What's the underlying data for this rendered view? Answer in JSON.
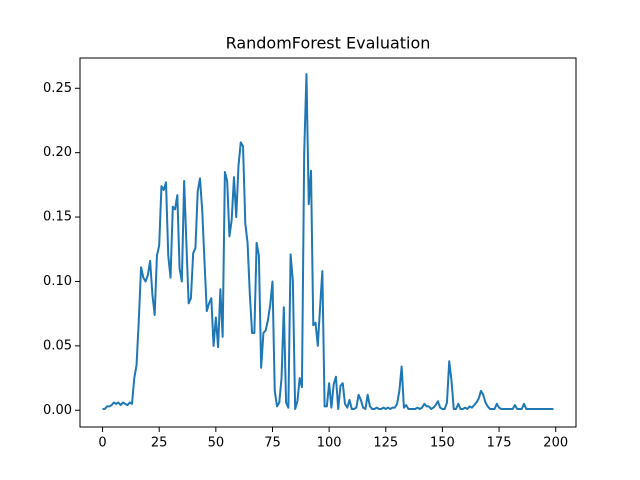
{
  "chart_data": {
    "type": "line",
    "title": "RandomForest Evaluation",
    "color": "#1f77b4",
    "x": [
      0,
      1,
      2,
      3,
      4,
      5,
      6,
      7,
      8,
      9,
      10,
      11,
      12,
      13,
      14,
      15,
      16,
      17,
      18,
      19,
      20,
      21,
      22,
      23,
      24,
      25,
      26,
      27,
      28,
      29,
      30,
      31,
      32,
      33,
      34,
      35,
      36,
      37,
      38,
      39,
      40,
      41,
      42,
      43,
      44,
      45,
      46,
      47,
      48,
      49,
      50,
      51,
      52,
      53,
      54,
      55,
      56,
      57,
      58,
      59,
      60,
      61,
      62,
      63,
      64,
      65,
      66,
      67,
      68,
      69,
      70,
      71,
      72,
      73,
      74,
      75,
      76,
      77,
      78,
      79,
      80,
      81,
      82,
      83,
      84,
      85,
      86,
      87,
      88,
      89,
      90,
      91,
      92,
      93,
      94,
      95,
      96,
      97,
      98,
      99,
      100,
      101,
      102,
      103,
      104,
      105,
      106,
      107,
      108,
      109,
      110,
      111,
      112,
      113,
      114,
      115,
      116,
      117,
      118,
      119,
      120,
      121,
      122,
      123,
      124,
      125,
      126,
      127,
      128,
      129,
      130,
      131,
      132,
      133,
      134,
      135,
      136,
      137,
      138,
      139,
      140,
      141,
      142,
      143,
      144,
      145,
      146,
      147,
      148,
      149,
      150,
      151,
      152,
      153,
      154,
      155,
      156,
      157,
      158,
      159,
      160,
      161,
      162,
      163,
      164,
      165,
      166,
      167,
      168,
      169,
      170,
      171,
      172,
      173,
      174,
      175,
      176,
      177,
      178,
      179,
      180,
      181,
      182,
      183,
      184,
      185,
      186,
      187,
      188,
      189,
      190,
      191,
      192,
      193,
      194,
      195,
      196,
      197,
      198,
      199
    ],
    "values": [
      0.001,
      0.001,
      0.003,
      0.003,
      0.004,
      0.006,
      0.005,
      0.006,
      0.004,
      0.006,
      0.005,
      0.004,
      0.006,
      0.005,
      0.025,
      0.035,
      0.07,
      0.111,
      0.103,
      0.1,
      0.105,
      0.116,
      0.09,
      0.074,
      0.12,
      0.128,
      0.174,
      0.171,
      0.177,
      0.12,
      0.103,
      0.158,
      0.156,
      0.167,
      0.11,
      0.1,
      0.178,
      0.13,
      0.083,
      0.087,
      0.122,
      0.126,
      0.17,
      0.18,
      0.155,
      0.115,
      0.077,
      0.083,
      0.087,
      0.05,
      0.072,
      0.049,
      0.094,
      0.057,
      0.185,
      0.178,
      0.135,
      0.148,
      0.181,
      0.15,
      0.19,
      0.208,
      0.205,
      0.145,
      0.13,
      0.09,
      0.06,
      0.06,
      0.13,
      0.12,
      0.033,
      0.06,
      0.062,
      0.07,
      0.082,
      0.1,
      0.015,
      0.003,
      0.006,
      0.025,
      0.08,
      0.006,
      0.002,
      0.121,
      0.1,
      0.001,
      0.007,
      0.025,
      0.018,
      0.2,
      0.261,
      0.16,
      0.186,
      0.066,
      0.068,
      0.05,
      0.08,
      0.108,
      0.003,
      0.003,
      0.021,
      0.002,
      0.02,
      0.026,
      0.001,
      0.019,
      0.021,
      0.005,
      0.002,
      0.008,
      0.001,
      0.001,
      0.002,
      0.012,
      0.008,
      0.002,
      0.001,
      0.012,
      0.003,
      0.001,
      0.001,
      0.002,
      0.001,
      0.001,
      0.002,
      0.001,
      0.002,
      0.001,
      0.002,
      0.002,
      0.005,
      0.015,
      0.034,
      0.002,
      0.004,
      0.001,
      0.001,
      0.001,
      0.001,
      0.002,
      0.001,
      0.002,
      0.005,
      0.003,
      0.003,
      0.001,
      0.002,
      0.004,
      0.007,
      0.002,
      0.001,
      0.001,
      0.006,
      0.038,
      0.023,
      0.001,
      0.001,
      0.005,
      0.001,
      0.001,
      0.002,
      0.001,
      0.003,
      0.002,
      0.004,
      0.006,
      0.009,
      0.015,
      0.012,
      0.006,
      0.003,
      0.001,
      0.001,
      0.001,
      0.005,
      0.002,
      0.001,
      0.001,
      0.001,
      0.001,
      0.001,
      0.001,
      0.004,
      0.001,
      0.001,
      0.001,
      0.005,
      0.001,
      0.001,
      0.001,
      0.001,
      0.001,
      0.001,
      0.001,
      0.001,
      0.001,
      0.001,
      0.001,
      0.001,
      0.001
    ],
    "xlim": [
      -9.95,
      208.95
    ],
    "xticks": [
      0,
      25,
      50,
      75,
      100,
      125,
      150,
      175,
      200
    ],
    "ylim": [
      -0.013,
      0.2735
    ],
    "yticks": [
      {
        "value": 0,
        "label": "0.00"
      },
      {
        "value": 0.05,
        "label": "0.05"
      },
      {
        "value": 0.1,
        "label": "0.10"
      },
      {
        "value": 0.15,
        "label": "0.15"
      },
      {
        "value": 0.2,
        "label": "0.20"
      },
      {
        "value": 0.25,
        "label": "0.25"
      }
    ],
    "grid": false
  }
}
